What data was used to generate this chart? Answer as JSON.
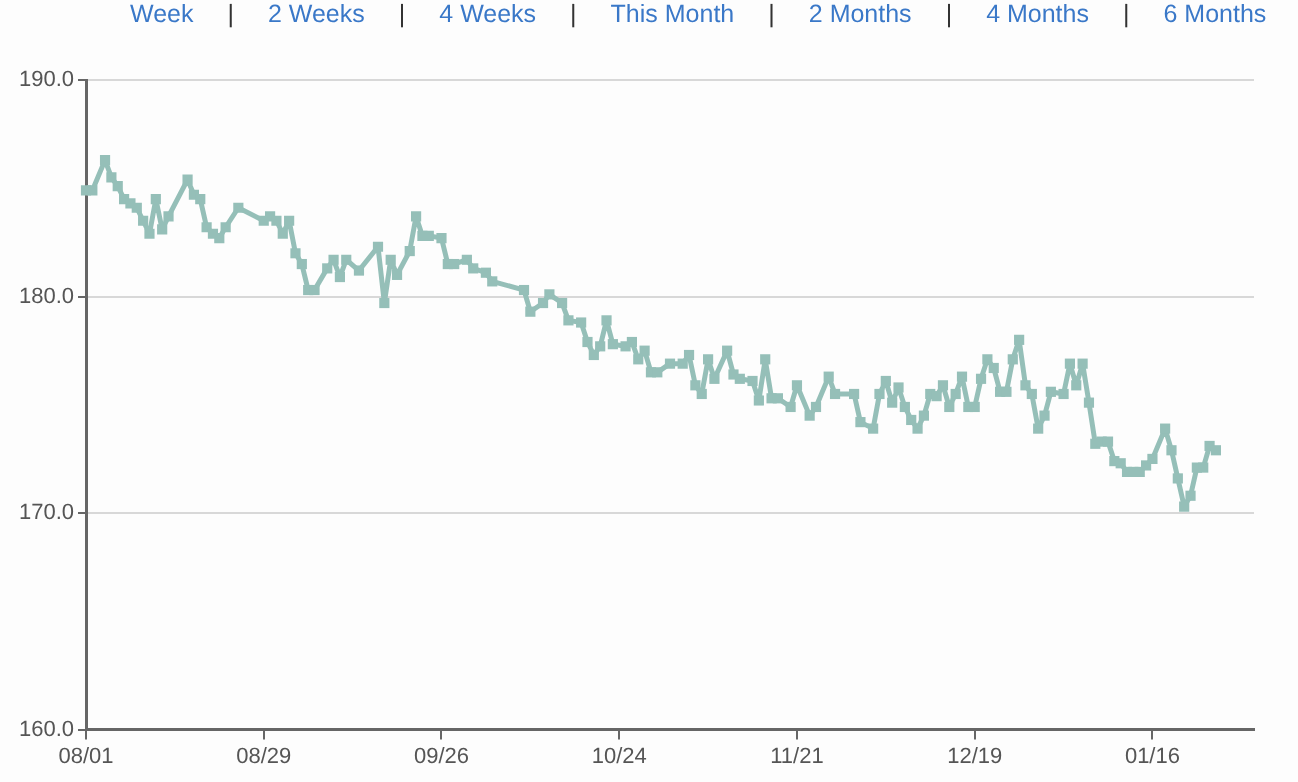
{
  "chart_data": {
    "type": "line",
    "annotations": [
      "Week",
      "|",
      "2 Weeks",
      "|",
      "4 Weeks",
      "|",
      "This Month",
      "|",
      "2 Months",
      "|",
      "4 Months",
      "|",
      "6 Months"
    ],
    "categories": [
      "08/01",
      null,
      null,
      null,
      null,
      null,
      null,
      null,
      null,
      null,
      null,
      null,
      null,
      null,
      null,
      null,
      null,
      null,
      null,
      null,
      null,
      null,
      null,
      null,
      null,
      null,
      null,
      null,
      "08/29",
      null,
      null,
      null,
      null,
      null,
      null,
      null,
      null,
      null,
      null,
      null,
      null,
      null,
      null,
      null,
      null,
      null,
      null,
      null,
      null,
      null,
      null,
      null,
      null,
      null,
      null,
      null,
      "09/26",
      null,
      null,
      null,
      null,
      null,
      null,
      null,
      null,
      null,
      null,
      null,
      null,
      null,
      null,
      null,
      null,
      null,
      null,
      null,
      null,
      null,
      null,
      null,
      null,
      null,
      null,
      null,
      "10/24",
      null,
      null,
      null,
      null,
      null,
      null,
      null,
      null,
      null,
      null,
      null,
      null,
      null,
      null,
      null,
      null,
      null,
      null,
      null,
      null,
      null,
      null,
      null,
      null,
      null,
      null,
      null,
      "11/21",
      null,
      null,
      null,
      null,
      null,
      null,
      null,
      null,
      null,
      null,
      null,
      null,
      null,
      null,
      null,
      null,
      null,
      null,
      null,
      null,
      null,
      null,
      null,
      null,
      null,
      null,
      null,
      "12/19",
      null,
      null,
      null,
      null,
      null,
      null,
      null,
      null,
      null,
      null,
      null,
      null,
      null,
      null,
      null,
      null,
      null,
      null,
      null,
      null,
      null,
      null,
      null,
      null,
      null,
      null,
      null,
      "01/16",
      null,
      null,
      null,
      null,
      null,
      null,
      null,
      null,
      null,
      null,
      null,
      null,
      null,
      null,
      null,
      null
    ],
    "series": [
      {
        "color": "#95bfb8",
        "values": [
          184.9,
          184.9,
          null,
          186.3,
          185.5,
          185.1,
          184.5,
          184.3,
          184.1,
          183.5,
          182.9,
          184.5,
          183.1,
          183.7,
          null,
          null,
          185.4,
          184.7,
          184.5,
          183.2,
          182.9,
          182.7,
          183.2,
          null,
          184.1,
          null,
          null,
          null,
          183.5,
          183.7,
          183.5,
          182.9,
          183.5,
          182.0,
          181.5,
          180.3,
          180.3,
          null,
          181.3,
          181.7,
          180.9,
          181.7,
          null,
          181.2,
          null,
          null,
          182.3,
          179.7,
          181.7,
          181.0,
          null,
          182.1,
          183.7,
          182.8,
          182.8,
          null,
          182.7,
          181.5,
          181.5,
          null,
          181.7,
          181.3,
          null,
          181.1,
          180.7,
          null,
          null,
          null,
          null,
          180.3,
          179.3,
          null,
          179.7,
          180.1,
          null,
          179.7,
          178.9,
          null,
          178.8,
          177.9,
          177.3,
          177.7,
          178.9,
          177.8,
          null,
          177.7,
          177.9,
          177.1,
          177.5,
          176.5,
          176.5,
          null,
          176.9,
          null,
          176.9,
          177.3,
          175.9,
          175.5,
          177.1,
          176.2,
          null,
          177.5,
          176.4,
          176.2,
          null,
          176.1,
          175.2,
          177.1,
          175.3,
          175.3,
          null,
          174.9,
          175.9,
          null,
          174.5,
          174.9,
          null,
          176.3,
          175.5,
          null,
          null,
          175.5,
          174.2,
          null,
          173.9,
          175.5,
          176.1,
          175.1,
          175.8,
          174.9,
          174.3,
          173.9,
          174.5,
          175.5,
          175.4,
          175.9,
          174.9,
          175.5,
          176.3,
          174.9,
          174.9,
          176.2,
          177.1,
          176.7,
          175.6,
          175.6,
          177.1,
          178.0,
          175.9,
          175.5,
          173.9,
          174.5,
          175.6,
          null,
          175.5,
          176.9,
          175.9,
          176.9,
          175.1,
          173.2,
          173.3,
          173.3,
          172.4,
          172.3,
          171.9,
          171.9,
          171.9,
          172.2,
          172.5,
          null,
          173.9,
          172.9,
          171.6,
          170.3,
          170.8,
          172.1,
          172.1,
          173.1,
          172.9,
          null,
          null,
          null,
          null,
          null,
          null
        ]
      }
    ],
    "ylim": [
      160,
      190
    ],
    "yticks": [
      {
        "value": 160,
        "label": "160.0"
      },
      {
        "value": 170,
        "label": "170.0"
      },
      {
        "value": 180,
        "label": "180.0"
      },
      {
        "value": 190,
        "label": "190.0"
      }
    ],
    "grid": "y",
    "legend": false,
    "marker": "square",
    "line_style": "solid"
  }
}
